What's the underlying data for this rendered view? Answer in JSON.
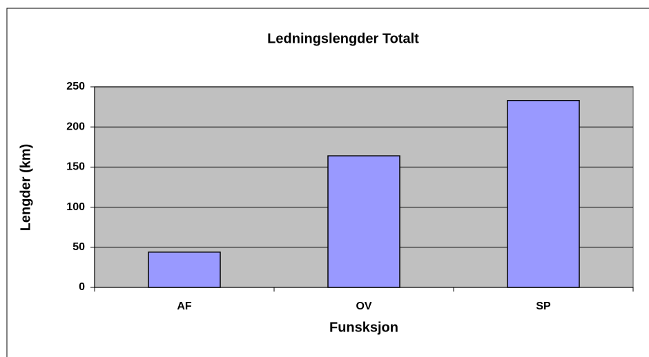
{
  "chart_data": {
    "type": "bar",
    "title": "Ledningslengder Totalt",
    "x_label": "Funsksjon",
    "y_label": "Lengder (km)",
    "categories": [
      "AF",
      "OV",
      "SP"
    ],
    "values": [
      44,
      164,
      233
    ],
    "color": "#9999ff",
    "ylim": [
      0,
      250
    ],
    "yticks": [
      0,
      50,
      100,
      150,
      200,
      250
    ],
    "grid": true
  }
}
